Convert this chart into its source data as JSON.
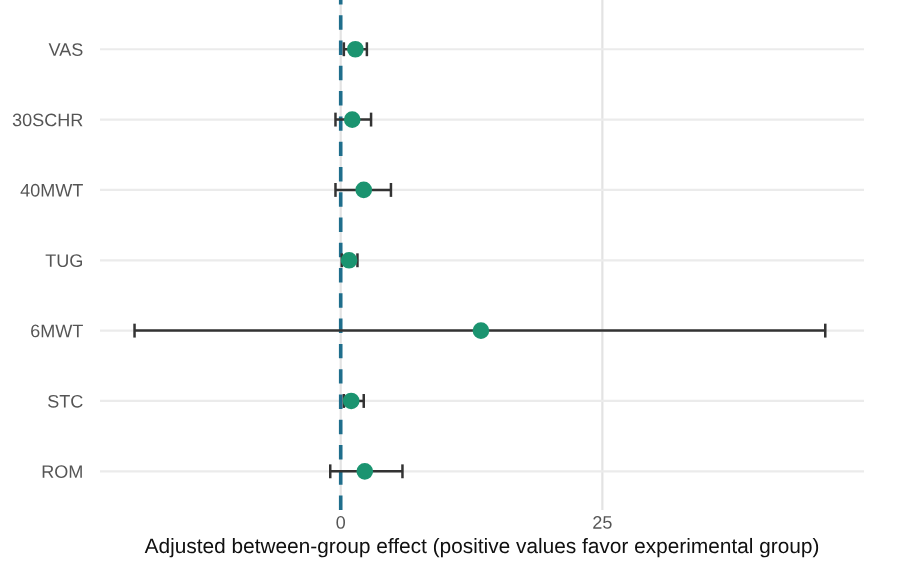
{
  "chart_data": {
    "type": "scatter",
    "orientation": "horizontal",
    "categories": [
      "VAS",
      "30SCHR",
      "40MWT",
      "TUG",
      "6MWT",
      "STC",
      "ROM"
    ],
    "values": [
      1.4,
      1.1,
      2.2,
      0.8,
      13.4,
      1.0,
      2.3
    ],
    "errors": [
      [
        0.3,
        2.5
      ],
      [
        -0.5,
        2.9
      ],
      [
        -0.5,
        4.8
      ],
      [
        0.1,
        1.6
      ],
      [
        -19.7,
        46.3
      ],
      [
        0.3,
        2.2
      ],
      [
        -1.0,
        5.9
      ]
    ],
    "color": "#1b9470",
    "xlabel": "Adjusted between-group effect (positive values favor experimental group)",
    "xlim": [
      -23,
      50
    ],
    "xticks": [
      0,
      25
    ],
    "ref_lines": [
      {
        "axis": "x",
        "value": 0,
        "color": "#1f6e8c",
        "line_style": "dashed"
      }
    ],
    "grid": true,
    "marker": "circle"
  }
}
